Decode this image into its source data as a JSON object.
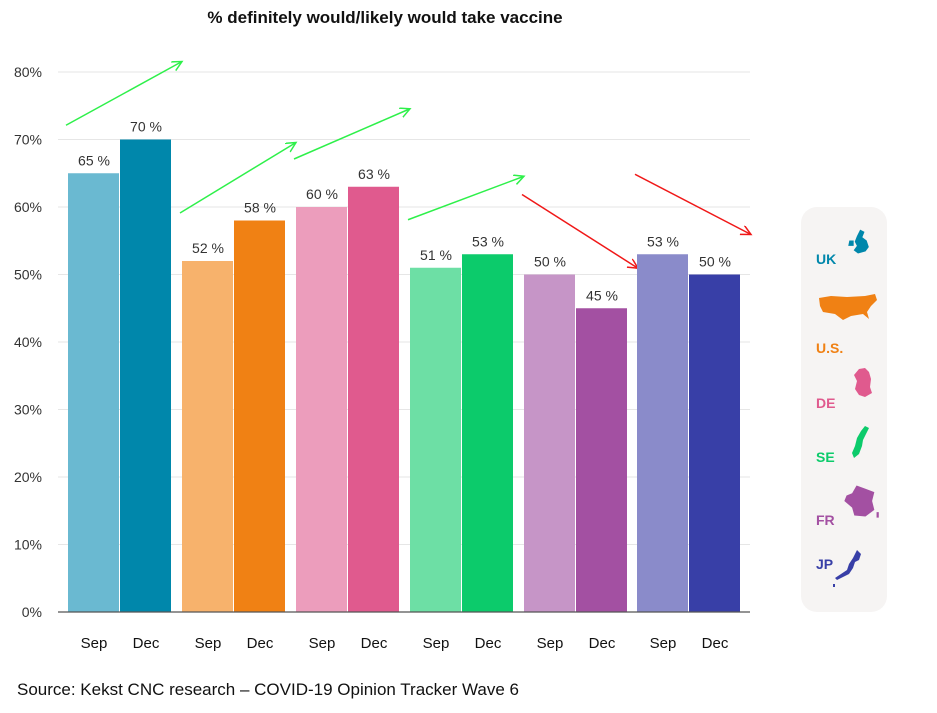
{
  "chart_data": {
    "type": "bar",
    "title": "% definitely would/likely would take vaccine",
    "xlabel": "",
    "ylabel": "",
    "ylim": [
      0,
      80
    ],
    "yticks": [
      0,
      10,
      20,
      30,
      40,
      50,
      60,
      70,
      80
    ],
    "ytick_labels": [
      "0%",
      "10%",
      "20%",
      "30%",
      "40%",
      "50%",
      "60%",
      "70%",
      "80%"
    ],
    "groups": [
      {
        "country": "UK",
        "bars": [
          {
            "label": "Sep",
            "value": 65,
            "text": "65 %",
            "color": "#6ab9d1"
          },
          {
            "label": "Dec",
            "value": 70,
            "text": "70 %",
            "color": "#0087ab"
          }
        ],
        "trend": "up"
      },
      {
        "country": "U.S.",
        "bars": [
          {
            "label": "Sep",
            "value": 52,
            "text": "52 %",
            "color": "#f7b26c"
          },
          {
            "label": "Dec",
            "value": 58,
            "text": "58 %",
            "color": "#f08114"
          }
        ],
        "trend": "up"
      },
      {
        "country": "DE",
        "bars": [
          {
            "label": "Sep",
            "value": 60,
            "text": "60 %",
            "color": "#ec9dbc"
          },
          {
            "label": "Dec",
            "value": 63,
            "text": "63 %",
            "color": "#e05a8e"
          }
        ],
        "trend": "up"
      },
      {
        "country": "SE",
        "bars": [
          {
            "label": "Sep",
            "value": 51,
            "text": "51 %",
            "color": "#6ddfa5"
          },
          {
            "label": "Dec",
            "value": 53,
            "text": "53 %",
            "color": "#0ccb6b"
          }
        ],
        "trend": "up"
      },
      {
        "country": "FR",
        "bars": [
          {
            "label": "Sep",
            "value": 50,
            "text": "50 %",
            "color": "#c695c7"
          },
          {
            "label": "Dec",
            "value": 45,
            "text": "45 %",
            "color": "#a350a2"
          }
        ],
        "trend": "down"
      },
      {
        "country": "JP",
        "bars": [
          {
            "label": "Sep",
            "value": 53,
            "text": "53 %",
            "color": "#8a8bca"
          },
          {
            "label": "Dec",
            "value": 50,
            "text": "50 %",
            "color": "#383fa7"
          }
        ],
        "trend": "down"
      }
    ],
    "trend_colors": {
      "up": "#2ef04a",
      "down": "#f01818"
    },
    "legend": [
      {
        "label": "UK",
        "color": "#0087ab",
        "icon": "uk-map-icon"
      },
      {
        "label": "U.S.",
        "color": "#f08114",
        "icon": "us-map-icon"
      },
      {
        "label": "DE",
        "color": "#e05a8e",
        "icon": "de-map-icon"
      },
      {
        "label": "SE",
        "color": "#0ccb6b",
        "icon": "se-map-icon"
      },
      {
        "label": "FR",
        "color": "#a350a2",
        "icon": "fr-map-icon"
      },
      {
        "label": "JP",
        "color": "#383fa7",
        "icon": "jp-map-icon"
      }
    ]
  },
  "source": "Source: Kekst CNC research – COVID-19 Opinion Tracker Wave 6"
}
